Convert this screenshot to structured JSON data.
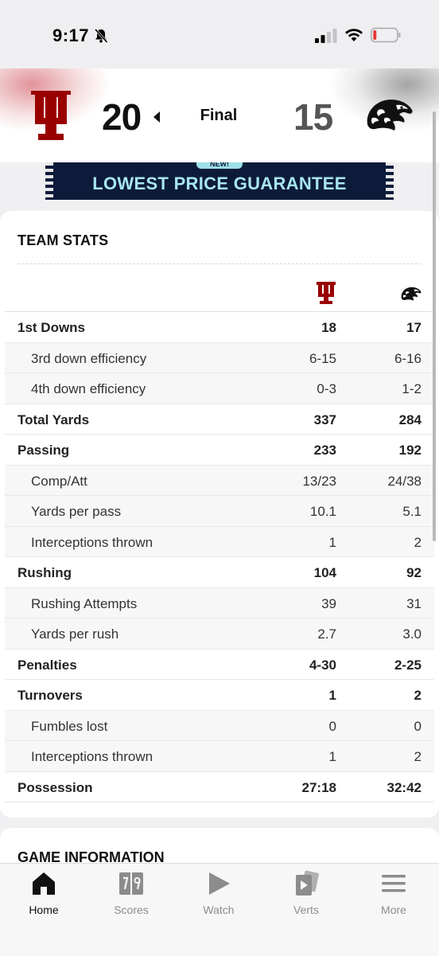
{
  "status_bar": {
    "time": "9:17"
  },
  "scoreboard": {
    "home_team_icon": "indiana-trident-logo",
    "home_score": "20",
    "status": "Final",
    "away_score": "15",
    "away_team_icon": "iowa-hawkeye-logo",
    "colors": {
      "home": "#990000",
      "away": "#111111"
    }
  },
  "ad": {
    "tag": "NEW!",
    "text": "LOWEST PRICE GUARANTEE"
  },
  "team_stats": {
    "title": "TEAM STATS",
    "rows": [
      {
        "label": "1st Downs",
        "home": "18",
        "away": "17",
        "type": "primary"
      },
      {
        "label": "3rd down efficiency",
        "home": "6-15",
        "away": "6-16",
        "type": "sub"
      },
      {
        "label": "4th down efficiency",
        "home": "0-3",
        "away": "1-2",
        "type": "sub"
      },
      {
        "label": "Total Yards",
        "home": "337",
        "away": "284",
        "type": "primary"
      },
      {
        "label": "Passing",
        "home": "233",
        "away": "192",
        "type": "primary"
      },
      {
        "label": "Comp/Att",
        "home": "13/23",
        "away": "24/38",
        "type": "sub"
      },
      {
        "label": "Yards per pass",
        "home": "10.1",
        "away": "5.1",
        "type": "sub"
      },
      {
        "label": "Interceptions thrown",
        "home": "1",
        "away": "2",
        "type": "sub"
      },
      {
        "label": "Rushing",
        "home": "104",
        "away": "92",
        "type": "primary"
      },
      {
        "label": "Rushing Attempts",
        "home": "39",
        "away": "31",
        "type": "sub"
      },
      {
        "label": "Yards per rush",
        "home": "2.7",
        "away": "3.0",
        "type": "sub"
      },
      {
        "label": "Penalties",
        "home": "4-30",
        "away": "2-25",
        "type": "primary"
      },
      {
        "label": "Turnovers",
        "home": "1",
        "away": "2",
        "type": "primary"
      },
      {
        "label": "Fumbles lost",
        "home": "0",
        "away": "0",
        "type": "sub"
      },
      {
        "label": "Interceptions thrown",
        "home": "1",
        "away": "2",
        "type": "sub"
      },
      {
        "label": "Possession",
        "home": "27:18",
        "away": "32:42",
        "type": "primary"
      }
    ]
  },
  "game_information": {
    "title": "GAME INFORMATION"
  },
  "nav": {
    "items": [
      {
        "label": "Home",
        "icon": "home-icon",
        "active": true
      },
      {
        "label": "Scores",
        "icon": "scores-icon",
        "active": false
      },
      {
        "label": "Watch",
        "icon": "play-icon",
        "active": false
      },
      {
        "label": "Verts",
        "icon": "verts-icon",
        "active": false
      },
      {
        "label": "More",
        "icon": "menu-icon",
        "active": false
      }
    ]
  }
}
